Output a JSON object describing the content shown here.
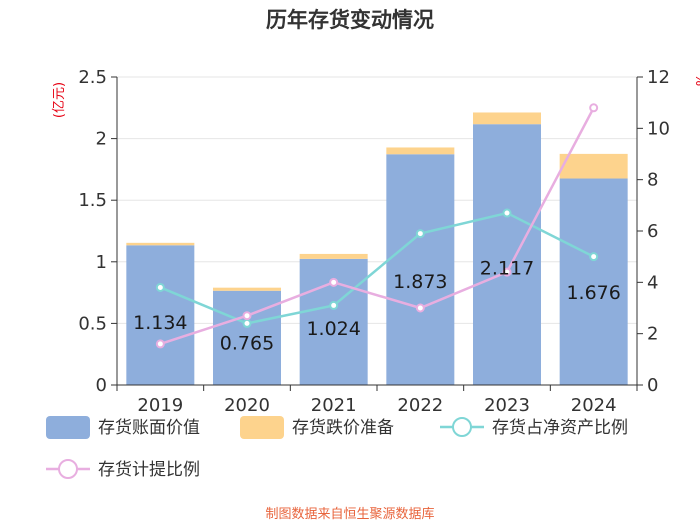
{
  "chart_data": {
    "type": "bar",
    "title": "历年存货变动情况",
    "categories": [
      "2019",
      "2020",
      "2021",
      "2022",
      "2023",
      "2024"
    ],
    "y_left": {
      "unit": "(亿元)",
      "ylim": [
        0,
        2.5
      ],
      "ticks": [
        "0",
        "0.5",
        "1",
        "1.5",
        "2",
        "2.5"
      ]
    },
    "y_right": {
      "unit": "%",
      "ylim": [
        0,
        12
      ],
      "ticks": [
        "0",
        "2",
        "4",
        "6",
        "8",
        "10",
        "12"
      ]
    },
    "series": [
      {
        "name": "存货账面价值",
        "kind": "bar-stack",
        "axis": "left",
        "color": "#8eaedc",
        "values": [
          1.134,
          0.765,
          1.024,
          1.873,
          2.117,
          1.676
        ],
        "labels": [
          "1.134",
          "0.765",
          "1.024",
          "1.873",
          "2.117",
          "1.676"
        ]
      },
      {
        "name": "存货跌价准备",
        "kind": "bar-stack",
        "axis": "left",
        "color": "#fdd38d",
        "values": [
          0.02,
          0.025,
          0.04,
          0.055,
          0.095,
          0.2
        ]
      },
      {
        "name": "存货占净资产比例",
        "kind": "line",
        "axis": "right",
        "color": "#7fd6d6",
        "values": [
          3.8,
          2.4,
          3.1,
          5.9,
          6.7,
          5.0
        ]
      },
      {
        "name": "存货计提比例",
        "kind": "line",
        "axis": "right",
        "color": "#e8aee0",
        "values": [
          1.6,
          2.7,
          4.0,
          3.0,
          4.4,
          10.8
        ]
      }
    ],
    "grid": true,
    "legend_position": "bottom"
  },
  "source": "制图数据来自恒生聚源数据库"
}
